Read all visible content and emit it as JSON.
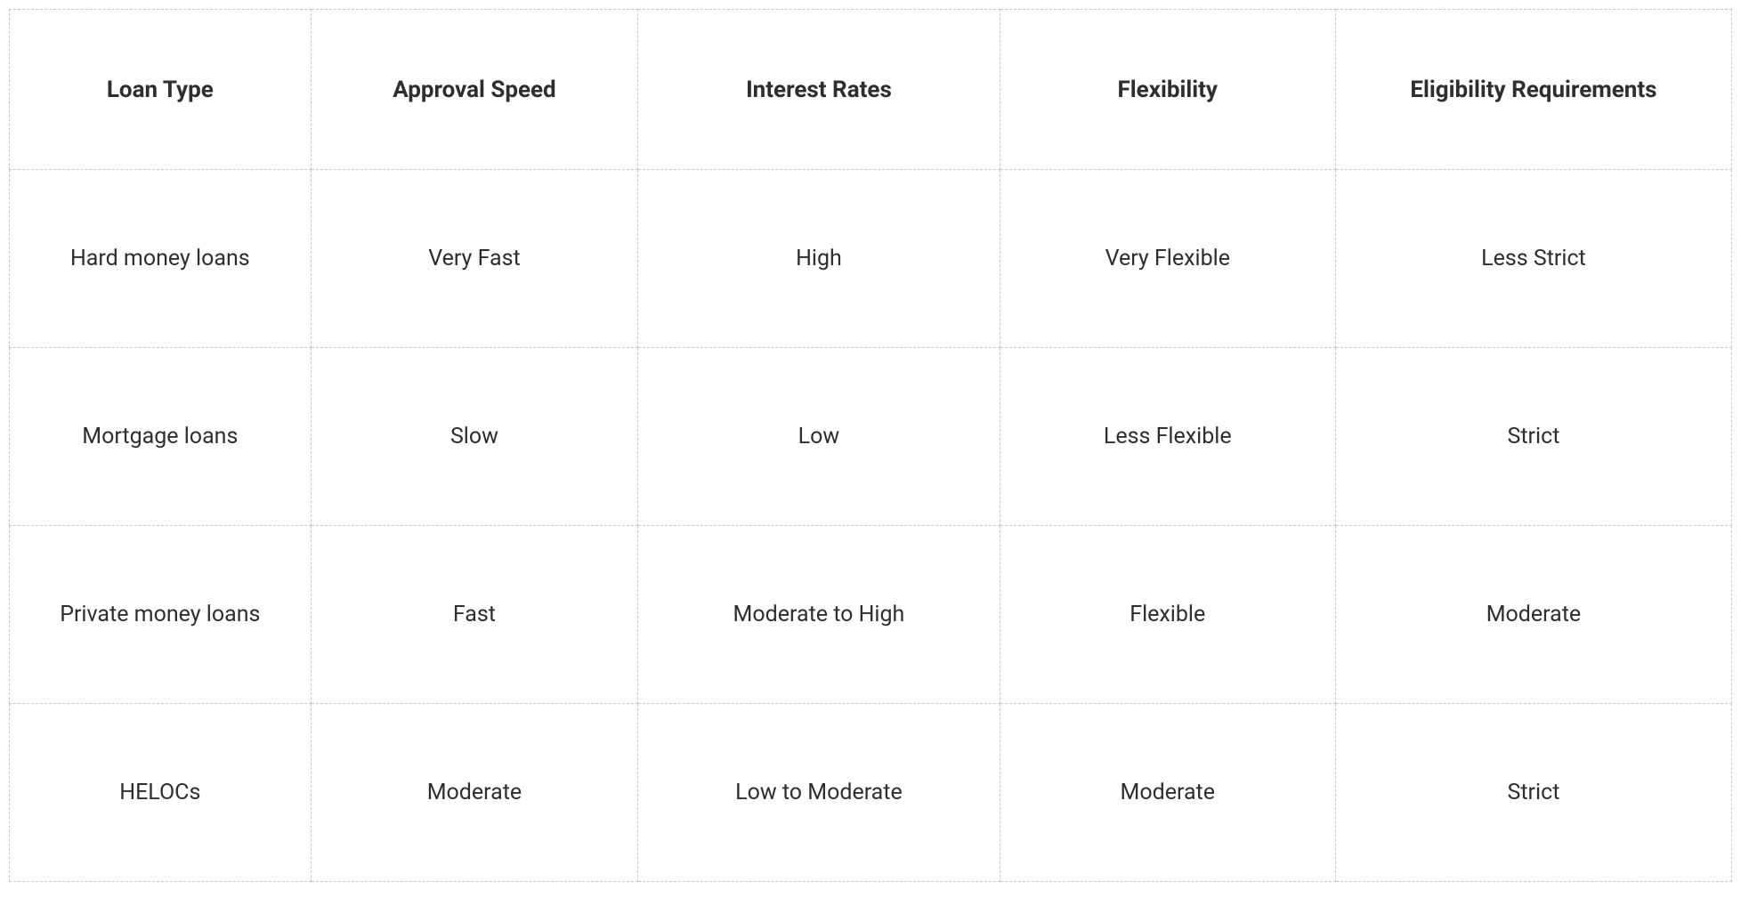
{
  "table": {
    "type": "table",
    "border_style": "dashed",
    "border_color": "#c8c8c8",
    "background_color": "#ffffff",
    "text_color": "#2e2e2e",
    "header_fontsize": 26,
    "header_fontweight": 700,
    "cell_fontsize": 25,
    "cell_fontweight": 400,
    "header_row_height": 180,
    "data_row_height": 200,
    "column_widths_percent": [
      17.5,
      19,
      21,
      19.5,
      23
    ],
    "columns": [
      "Loan Type",
      "Approval Speed",
      "Interest Rates",
      "Flexibility",
      "Eligibility Requirements"
    ],
    "rows": [
      [
        "Hard money loans",
        "Very Fast",
        "High",
        "Very Flexible",
        "Less Strict"
      ],
      [
        "Mortgage loans",
        "Slow",
        "Low",
        "Less Flexible",
        "Strict"
      ],
      [
        "Private money loans",
        "Fast",
        "Moderate to High",
        "Flexible",
        "Moderate"
      ],
      [
        "HELOCs",
        "Moderate",
        "Low to Moderate",
        "Moderate",
        "Strict"
      ]
    ]
  }
}
